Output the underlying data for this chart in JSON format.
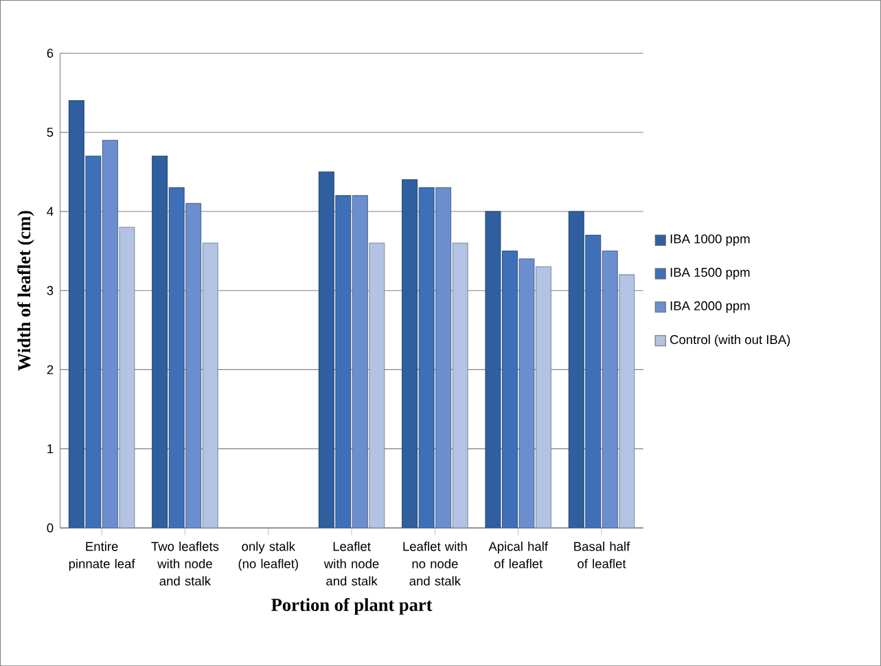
{
  "chart_data": {
    "type": "bar",
    "xlabel": "Portion of plant part",
    "ylabel": "Width of leaflet (cm)",
    "categories": [
      "Entire pinnate leaf",
      "Two leaflets with node and stalk",
      "only stalk (no leaflet)",
      "Leaflet with node and stalk",
      "Leaflet with no node and stalk",
      "Apical half of leaflet",
      "Basal half of leaflet"
    ],
    "series": [
      {
        "name": "IBA 1000 ppm",
        "color": "#2f5f9e",
        "values": [
          5.4,
          4.7,
          null,
          4.5,
          4.4,
          4.0,
          4.0
        ]
      },
      {
        "name": "IBA 1500 ppm",
        "color": "#3d70b8",
        "values": [
          4.7,
          4.3,
          null,
          4.2,
          4.3,
          3.5,
          3.7
        ]
      },
      {
        "name": "IBA 2000 ppm",
        "color": "#6b8ecf",
        "values": [
          4.9,
          4.1,
          null,
          4.2,
          4.3,
          3.4,
          3.5
        ]
      },
      {
        "name": "Control (with out IBA)",
        "color": "#b3c3e3",
        "values": [
          3.8,
          3.6,
          null,
          3.6,
          3.6,
          3.3,
          3.2
        ]
      }
    ],
    "ylim": [
      0,
      6
    ],
    "yticks": [
      0,
      1,
      2,
      3,
      4,
      5,
      6
    ],
    "grid": "y",
    "legend": "right"
  }
}
